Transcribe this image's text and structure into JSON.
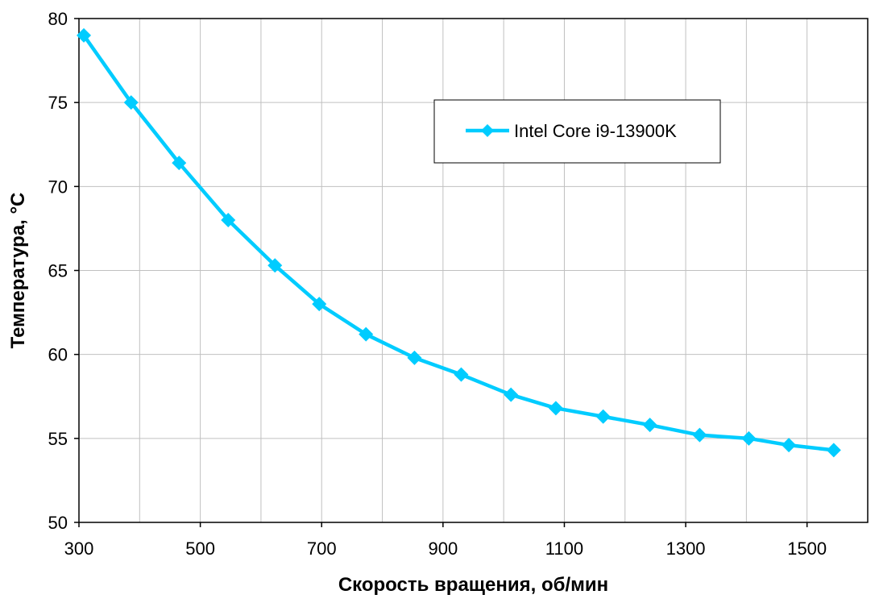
{
  "chart_data": {
    "type": "line",
    "title": "",
    "xlabel": "Скорость вращения, об/мин",
    "ylabel": "Температура, °C",
    "xlim": [
      300,
      1600
    ],
    "ylim": [
      50,
      80
    ],
    "xticks": [
      300,
      500,
      700,
      900,
      1100,
      1300,
      1500
    ],
    "yticks": [
      50,
      55,
      60,
      65,
      70,
      75,
      80
    ],
    "x_grid_step": 100,
    "grid": true,
    "legend_position": "top-right",
    "series": [
      {
        "name": "Intel Core i9-13900K",
        "color": "#00CCFF",
        "marker": "diamond",
        "points": [
          {
            "x": 308,
            "y": 79.0
          },
          {
            "x": 386,
            "y": 75.0
          },
          {
            "x": 465,
            "y": 71.4
          },
          {
            "x": 546,
            "y": 68.0
          },
          {
            "x": 623,
            "y": 65.3
          },
          {
            "x": 696,
            "y": 63.0
          },
          {
            "x": 773,
            "y": 61.2
          },
          {
            "x": 853,
            "y": 59.8
          },
          {
            "x": 930,
            "y": 58.8
          },
          {
            "x": 1012,
            "y": 57.6
          },
          {
            "x": 1086,
            "y": 56.8
          },
          {
            "x": 1164,
            "y": 56.3
          },
          {
            "x": 1241,
            "y": 55.8
          },
          {
            "x": 1323,
            "y": 55.2
          },
          {
            "x": 1404,
            "y": 55.0
          },
          {
            "x": 1470,
            "y": 54.6
          },
          {
            "x": 1544,
            "y": 54.3
          }
        ]
      }
    ]
  }
}
